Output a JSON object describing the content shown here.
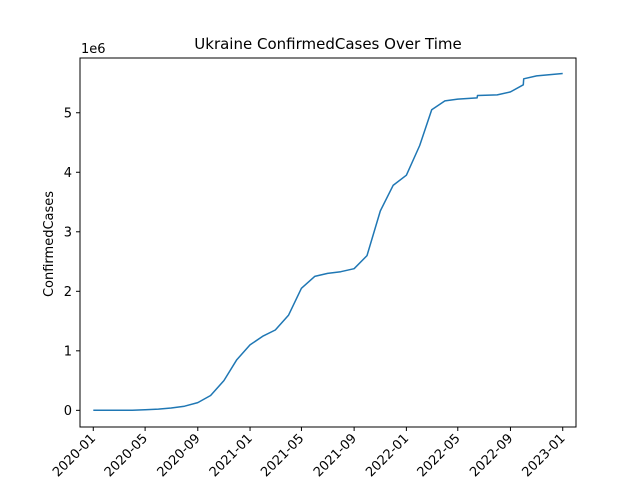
{
  "chart_data": {
    "type": "line",
    "title": "Ukraine  ConfirmedCases Over Time",
    "xlabel": "",
    "ylabel": "ConfirmedCases",
    "y_offset_label": "1e6",
    "grid": false,
    "xlim": [
      "2019-12-01",
      "2023-02-01"
    ],
    "ylim": [
      -0.28,
      5.92
    ],
    "x_ticks": [
      "2020-01",
      "2020-05",
      "2020-09",
      "2021-01",
      "2021-05",
      "2021-09",
      "2022-01",
      "2022-05",
      "2022-09",
      "2023-01"
    ],
    "y_ticks": [
      "0",
      "1",
      "2",
      "3",
      "4",
      "5"
    ],
    "series": [
      {
        "color": "#1f77b4",
        "x": [
          "2020-01-01",
          "2020-04-01",
          "2020-05-01",
          "2020-06-01",
          "2020-07-01",
          "2020-08-01",
          "2020-09-01",
          "2020-10-01",
          "2020-11-01",
          "2020-12-01",
          "2021-01-01",
          "2021-02-01",
          "2021-03-01",
          "2021-04-01",
          "2021-05-01",
          "2021-06-01",
          "2021-07-01",
          "2021-08-01",
          "2021-09-01",
          "2021-10-01",
          "2021-11-01",
          "2021-12-01",
          "2022-01-01",
          "2022-02-01",
          "2022-03-01",
          "2022-04-01",
          "2022-05-01",
          "2022-06-15",
          "2022-06-16",
          "2022-08-01",
          "2022-09-01",
          "2022-10-01",
          "2022-10-02",
          "2022-11-01",
          "2023-01-01"
        ],
        "y": [
          0,
          0,
          0.01,
          0.02,
          0.04,
          0.07,
          0.13,
          0.25,
          0.5,
          0.85,
          1.1,
          1.25,
          1.35,
          1.6,
          2.05,
          2.25,
          2.3,
          2.33,
          2.38,
          2.6,
          3.35,
          3.78,
          3.95,
          4.45,
          5.05,
          5.2,
          5.23,
          5.25,
          5.29,
          5.3,
          5.35,
          5.47,
          5.57,
          5.62,
          5.66
        ]
      }
    ]
  }
}
